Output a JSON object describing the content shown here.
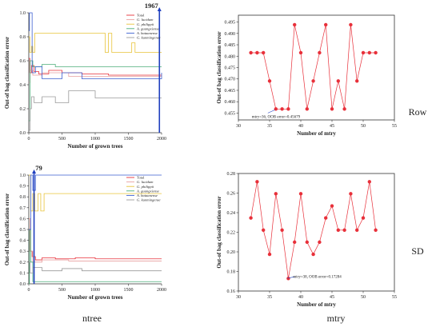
{
  "row_labels": [
    "Row",
    "SD"
  ],
  "column_labels": [
    "ntree",
    "mtry"
  ],
  "chart_data": [
    {
      "id": "ntree-row",
      "type": "line",
      "xlabel": "Number of grown trees",
      "ylabel": "Out-of bag classification error",
      "xlim": [
        0,
        2000
      ],
      "ylim": [
        0,
        1.0
      ],
      "xticks": [
        0,
        500,
        1000,
        1500,
        2000
      ],
      "yticks": [
        0.0,
        0.2,
        0.4,
        0.6,
        0.8,
        1.0
      ],
      "ytick_labels": [
        "0.0",
        "0.2",
        "0.4",
        "0.6",
        "0.8",
        "1.0"
      ],
      "grid": false,
      "legend_position": "top-right",
      "highlight": {
        "x": 1967,
        "label": "1967"
      },
      "series": [
        {
          "name": "Total",
          "color": "#e8303a",
          "points": [
            [
              0,
              0.62
            ],
            [
              15,
              0.5
            ],
            [
              40,
              0.56
            ],
            [
              80,
              0.51
            ],
            [
              150,
              0.49
            ],
            [
              300,
              0.52
            ],
            [
              500,
              0.5
            ],
            [
              800,
              0.49
            ],
            [
              1200,
              0.48
            ],
            [
              1600,
              0.48
            ],
            [
              2000,
              0.48
            ]
          ]
        },
        {
          "name": "G. lucidum",
          "color": "#e8a0a0",
          "points": [
            [
              0,
              0.42
            ],
            [
              20,
              0.52
            ],
            [
              60,
              0.48
            ],
            [
              200,
              0.5
            ],
            [
              600,
              0.47
            ],
            [
              1000,
              0.47
            ],
            [
              2000,
              0.47
            ]
          ]
        },
        {
          "name": "G. philippii",
          "color": "#e8c43a",
          "points": [
            [
              0,
              0.8
            ],
            [
              15,
              0.67
            ],
            [
              40,
              0.72
            ],
            [
              60,
              0.67
            ],
            [
              90,
              0.83
            ],
            [
              1100,
              0.83
            ],
            [
              1150,
              0.67
            ],
            [
              1200,
              0.83
            ],
            [
              1250,
              0.67
            ],
            [
              1500,
              0.67
            ],
            [
              1550,
              0.75
            ],
            [
              1600,
              0.67
            ],
            [
              2000,
              0.67
            ]
          ]
        },
        {
          "name": "A. guangxiense",
          "color": "#4caf7a",
          "points": [
            [
              0,
              0.1
            ],
            [
              20,
              0.6
            ],
            [
              60,
              0.55
            ],
            [
              200,
              0.57
            ],
            [
              400,
              0.55
            ],
            [
              1000,
              0.55
            ],
            [
              2000,
              0.55
            ]
          ]
        },
        {
          "name": "A. bataanense",
          "color": "#3b5fd0",
          "points": [
            [
              0,
              0.85
            ],
            [
              10,
              1.0
            ],
            [
              50,
              0.5
            ],
            [
              100,
              0.55
            ],
            [
              200,
              0.45
            ],
            [
              500,
              0.5
            ],
            [
              800,
              0.45
            ],
            [
              1500,
              0.45
            ],
            [
              2000,
              0.5
            ]
          ]
        },
        {
          "name": "G. kunmingense",
          "color": "#9a9a9a",
          "points": [
            [
              0,
              0.02
            ],
            [
              20,
              0.2
            ],
            [
              40,
              0.3
            ],
            [
              80,
              0.25
            ],
            [
              200,
              0.3
            ],
            [
              400,
              0.25
            ],
            [
              600,
              0.35
            ],
            [
              1000,
              0.29
            ],
            [
              1400,
              0.29
            ],
            [
              2000,
              0.29
            ]
          ]
        }
      ]
    },
    {
      "id": "mtry-row",
      "type": "line",
      "xlabel": "Number of mtry",
      "ylabel": "Out-of bag classification error",
      "xlim": [
        30,
        55
      ],
      "ylim": [
        0.452,
        0.498
      ],
      "xticks": [
        30,
        35,
        40,
        45,
        50,
        55
      ],
      "yticks": [
        0.455,
        0.46,
        0.465,
        0.47,
        0.475,
        0.48,
        0.485,
        0.49,
        0.495
      ],
      "ytick_labels": [
        "0.455",
        "0.460",
        "0.465",
        "0.470",
        "0.475",
        "0.480",
        "0.485",
        "0.490",
        "0.495"
      ],
      "grid": false,
      "annotation": {
        "text": "mtry=36, OOB error=0.45679",
        "x": 36,
        "y": 0.45679
      },
      "series": [
        {
          "name": "",
          "color": "#e8303a",
          "x": [
            32,
            33,
            34,
            35,
            36,
            37,
            38,
            39,
            40,
            41,
            42,
            43,
            44,
            45,
            46,
            47,
            48,
            49,
            50,
            51,
            52
          ],
          "y": [
            0.4815,
            0.4815,
            0.4815,
            0.4691,
            0.4568,
            0.4568,
            0.4568,
            0.4938,
            0.4815,
            0.4568,
            0.4691,
            0.4815,
            0.4938,
            0.4568,
            0.4691,
            0.4568,
            0.4938,
            0.4691,
            0.4815,
            0.4815,
            0.4815
          ]
        }
      ]
    },
    {
      "id": "ntree-sd",
      "type": "line",
      "xlabel": "Number of grown trees",
      "ylabel": "Out-of bag classification error",
      "xlim": [
        0,
        2000
      ],
      "ylim": [
        0,
        1.0
      ],
      "xticks": [
        0,
        500,
        1000,
        1500,
        2000
      ],
      "yticks": [
        0.0,
        0.1,
        0.2,
        0.3,
        0.4,
        0.5,
        0.6,
        0.7,
        0.8,
        0.9,
        1.0
      ],
      "ytick_labels": [
        "0.0",
        "0.1",
        "0.2",
        "0.3",
        "0.4",
        "0.5",
        "0.6",
        "0.7",
        "0.8",
        "0.9",
        "1.0"
      ],
      "grid": false,
      "legend_position": "top-right",
      "highlight": {
        "x": 79,
        "label": "79"
      },
      "series": [
        {
          "name": "Total",
          "color": "#e8303a",
          "points": [
            [
              0,
              0.5
            ],
            [
              20,
              0.3
            ],
            [
              50,
              0.25
            ],
            [
              100,
              0.22
            ],
            [
              200,
              0.24
            ],
            [
              400,
              0.23
            ],
            [
              700,
              0.24
            ],
            [
              1000,
              0.23
            ],
            [
              1500,
              0.23
            ],
            [
              2000,
              0.23
            ]
          ]
        },
        {
          "name": "G. lucidum",
          "color": "#e8a0a0",
          "points": [
            [
              0,
              0.6
            ],
            [
              20,
              0.3
            ],
            [
              60,
              0.2
            ],
            [
              200,
              0.22
            ],
            [
              600,
              0.21
            ],
            [
              2000,
              0.21
            ]
          ]
        },
        {
          "name": "G. philippii",
          "color": "#e8c43a",
          "points": [
            [
              0,
              1.0
            ],
            [
              30,
              0.67
            ],
            [
              60,
              0.83
            ],
            [
              90,
              0.67
            ],
            [
              140,
              0.83
            ],
            [
              180,
              0.67
            ],
            [
              230,
              0.83
            ],
            [
              2000,
              0.83
            ]
          ]
        },
        {
          "name": "A. guangxiense",
          "color": "#4caf7a",
          "points": [
            [
              0,
              0.0
            ],
            [
              10,
              0.5
            ],
            [
              30,
              0.2
            ],
            [
              60,
              0.02
            ],
            [
              200,
              0.02
            ],
            [
              2000,
              0.02
            ]
          ]
        },
        {
          "name": "A. bataanense",
          "color": "#3b5fd0",
          "points": [
            [
              0,
              0.5
            ],
            [
              30,
              1.0
            ],
            [
              60,
              0.86
            ],
            [
              100,
              1.0
            ],
            [
              2000,
              1.0
            ]
          ]
        },
        {
          "name": "G. kunmingense",
          "color": "#9a9a9a",
          "points": [
            [
              0,
              0.2
            ],
            [
              20,
              0.1
            ],
            [
              60,
              0.15
            ],
            [
              200,
              0.12
            ],
            [
              500,
              0.14
            ],
            [
              800,
              0.12
            ],
            [
              1200,
              0.12
            ],
            [
              2000,
              0.12
            ]
          ]
        }
      ]
    },
    {
      "id": "mtry-sd",
      "type": "line",
      "xlabel": "Number of mtry",
      "ylabel": "Out-of bag classification error",
      "xlim": [
        30,
        55
      ],
      "ylim": [
        0.16,
        0.28
      ],
      "xticks": [
        30,
        35,
        40,
        45,
        50,
        55
      ],
      "yticks": [
        0.16,
        0.18,
        0.2,
        0.22,
        0.24,
        0.26,
        0.28
      ],
      "ytick_labels": [
        "0.16",
        "0.18",
        "0.20",
        "0.22",
        "0.24",
        "0.26",
        "0.28"
      ],
      "grid": false,
      "annotation": {
        "text": "mtry=38, OOB error=0.17284",
        "x": 38,
        "y": 0.17284
      },
      "series": [
        {
          "name": "",
          "color": "#e8303a",
          "x": [
            32,
            33,
            34,
            35,
            36,
            37,
            38,
            39,
            40,
            41,
            42,
            43,
            44,
            45,
            46,
            47,
            48,
            49,
            50,
            51,
            52
          ],
          "y": [
            0.2346,
            0.2716,
            0.2222,
            0.1975,
            0.2593,
            0.2222,
            0.1728,
            0.2099,
            0.2593,
            0.2099,
            0.1975,
            0.2099,
            0.2346,
            0.2469,
            0.2222,
            0.2222,
            0.2593,
            0.2222,
            0.2346,
            0.2716,
            0.2222
          ]
        }
      ]
    }
  ]
}
